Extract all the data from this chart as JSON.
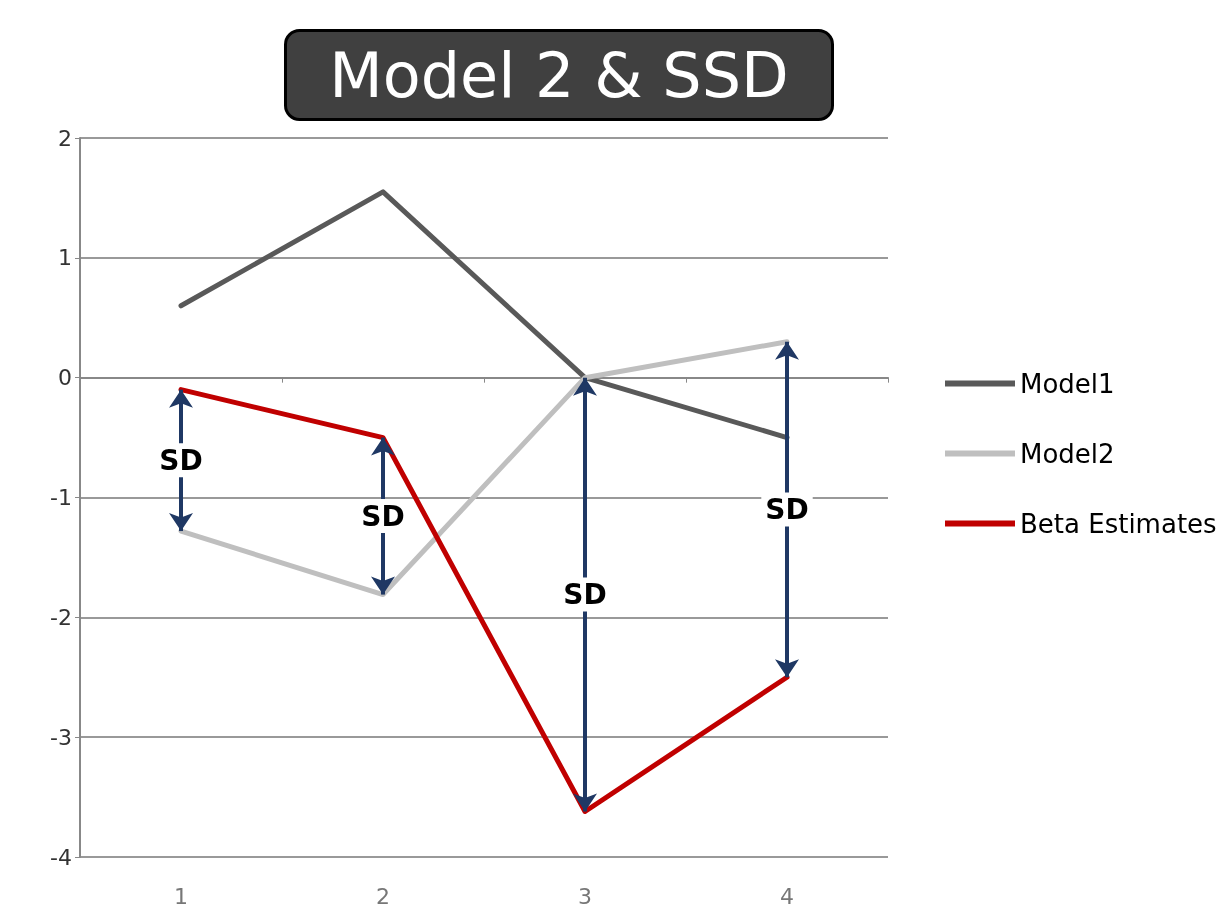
{
  "chart_data": {
    "type": "line",
    "title": "Model 2 & SSD",
    "categories": [
      "1",
      "2",
      "3",
      "4"
    ],
    "series": [
      {
        "name": "Model1",
        "color": "#595959",
        "values": [
          0.6,
          1.55,
          0,
          -0.5
        ]
      },
      {
        "name": "Model2",
        "color": "#bfbfbf",
        "values": [
          -1.28,
          -1.81,
          0,
          0.3
        ]
      },
      {
        "name": "Beta Estimates",
        "color": "#c00000",
        "values": [
          -0.1,
          -0.5,
          -3.62,
          -2.5
        ]
      }
    ],
    "ylim": [
      -4,
      2
    ],
    "yticks": [
      -4,
      -3,
      -2,
      -1,
      0,
      1,
      2
    ],
    "grid": "y",
    "legend": "right",
    "marker": "none",
    "line_style": "solid",
    "annotations": [
      "SD",
      "SD",
      "SD",
      "SD"
    ]
  }
}
